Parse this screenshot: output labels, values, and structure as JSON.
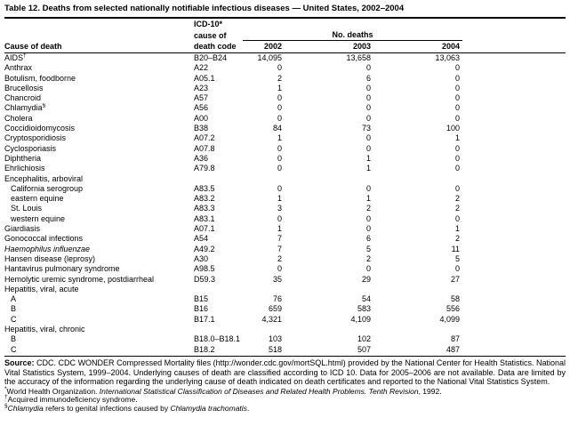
{
  "title": "Table 12. Deaths from selected nationally notifiable infectious diseases — United States, 2002–2004",
  "table": {
    "header": {
      "cause_col": "Cause of death",
      "icd_lines": [
        "ICD-10*",
        "cause of",
        "death code"
      ],
      "deaths_group": "No. deaths",
      "years": [
        "2002",
        "2003",
        "2004"
      ]
    },
    "rows": [
      {
        "cause": "AIDS",
        "sup": "†",
        "code": "B20–B24",
        "values": [
          "14,095",
          "13,658",
          "13,063"
        ]
      },
      {
        "cause": "Anthrax",
        "code": "A22",
        "values": [
          "0",
          "0",
          "0"
        ]
      },
      {
        "cause": "Botulism, foodborne",
        "code": "A05.1",
        "values": [
          "2",
          "6",
          "0"
        ]
      },
      {
        "cause": "Brucellosis",
        "code": "A23",
        "values": [
          "1",
          "0",
          "0"
        ]
      },
      {
        "cause": "Chancroid",
        "code": "A57",
        "values": [
          "0",
          "0",
          "0"
        ]
      },
      {
        "cause": "Chlamydia",
        "sup": "§",
        "code": "A56",
        "values": [
          "0",
          "0",
          "0"
        ]
      },
      {
        "cause": "Cholera",
        "code": "A00",
        "values": [
          "0",
          "0",
          "0"
        ]
      },
      {
        "cause": "Coccidioidomycosis",
        "code": "B38",
        "values": [
          "84",
          "73",
          "100"
        ]
      },
      {
        "cause": "Cryptosporidiosis",
        "code": "A07.2",
        "values": [
          "1",
          "0",
          "1"
        ]
      },
      {
        "cause": "Cyclosporiasis",
        "code": "A07.8",
        "values": [
          "0",
          "0",
          "0"
        ]
      },
      {
        "cause": "Diphtheria",
        "code": "A36",
        "values": [
          "0",
          "1",
          "0"
        ]
      },
      {
        "cause": "Ehrlichiosis",
        "code": "A79.8",
        "values": [
          "0",
          "1",
          "0"
        ]
      },
      {
        "cause": "Encephalitis, arboviral",
        "section": true
      },
      {
        "cause": "California serogroup",
        "indent": true,
        "code": "A83.5",
        "values": [
          "0",
          "0",
          "0"
        ]
      },
      {
        "cause": "eastern equine",
        "indent": true,
        "code": "A83.2",
        "values": [
          "1",
          "1",
          "2"
        ]
      },
      {
        "cause": "St. Louis",
        "indent": true,
        "code": "A83.3",
        "values": [
          "3",
          "2",
          "2"
        ]
      },
      {
        "cause": "western equine",
        "indent": true,
        "code": "A83.1",
        "values": [
          "0",
          "0",
          "0"
        ]
      },
      {
        "cause": "Giardiasis",
        "code": "A07.1",
        "values": [
          "1",
          "0",
          "1"
        ]
      },
      {
        "cause": "Gonococcal infections",
        "code": "A54",
        "values": [
          "7",
          "6",
          "2"
        ]
      },
      {
        "cause": "Haemophilus influenzae",
        "italic": true,
        "code": "A49.2",
        "values": [
          "7",
          "5",
          "11"
        ]
      },
      {
        "cause": "Hansen disease (leprosy)",
        "code": "A30",
        "values": [
          "2",
          "2",
          "5"
        ]
      },
      {
        "cause": "Hantavirus pulmonary syndrome",
        "code": "A98.5",
        "values": [
          "0",
          "0",
          "0"
        ]
      },
      {
        "cause": "Hemolytic uremic syndrome, postdiarrheal",
        "code": "D59.3",
        "values": [
          "35",
          "29",
          "27"
        ]
      },
      {
        "cause": "Hepatitis, viral, acute",
        "section": true
      },
      {
        "cause": "A",
        "indent": true,
        "code": "B15",
        "values": [
          "76",
          "54",
          "58"
        ]
      },
      {
        "cause": "B",
        "indent": true,
        "code": "B16",
        "values": [
          "659",
          "583",
          "556"
        ]
      },
      {
        "cause": "C",
        "indent": true,
        "code": "B17.1",
        "values": [
          "4,321",
          "4,109",
          "4,099"
        ]
      },
      {
        "cause": "Hepatitis, viral, chronic",
        "section": true
      },
      {
        "cause": "B",
        "indent": true,
        "code": "B18.0–B18.1",
        "values": [
          "103",
          "102",
          "87"
        ]
      },
      {
        "cause": "C",
        "indent": true,
        "code": "B18.2",
        "values": [
          "518",
          "507",
          "487"
        ]
      }
    ]
  },
  "source": {
    "label": "Source:",
    "text": " CDC. CDC WONDER Compressed Mortality files (http://wonder.cdc.gov/mortSQL.html) provided by the National Center for Health Statistics. National Vital Statistics System, 1999–2004. Underlying causes of death are classified according to ICD 10. Data for 2005–2006 are not available. Data are limited by the accuracy of the information regarding the underlying cause of death indicated on death certificates and reported to the National Vital Statistics System."
  },
  "footnotes": [
    {
      "marker": "*",
      "segments": [
        {
          "text": "World Health Organization. "
        },
        {
          "text": "International Statistical Classification of Diseases and Related Health Problems. Tenth Revision",
          "italic": true
        },
        {
          "text": ", 1992."
        }
      ]
    },
    {
      "marker": "†",
      "segments": [
        {
          "text": "Acquired immunodeficiency syndrome."
        }
      ]
    },
    {
      "marker": "§",
      "segments": [
        {
          "text": "Chlamydia",
          "italic": true
        },
        {
          "text": " refers to genital infections caused by "
        },
        {
          "text": "Chlamydia trachomatis",
          "italic": true
        },
        {
          "text": "."
        }
      ]
    }
  ]
}
